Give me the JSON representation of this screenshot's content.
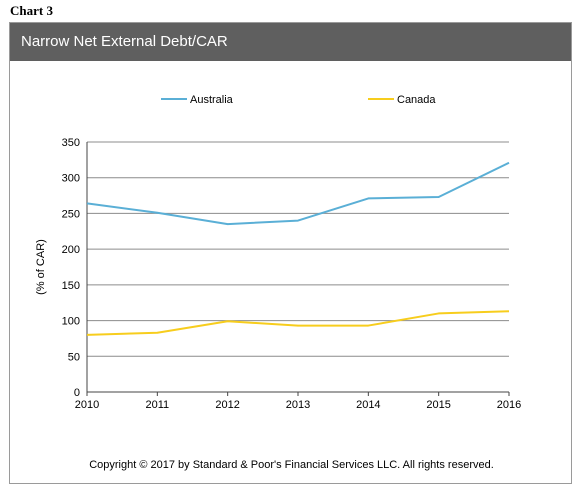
{
  "header": {
    "chart_label": "Chart 3"
  },
  "panel": {
    "title": "Narrow Net External Debt/CAR"
  },
  "footer": {
    "copyright": "Copyright © 2017 by Standard & Poor's Financial Services LLC. All rights reserved."
  },
  "colors": {
    "Australia": "#5aafd6",
    "Canada": "#f7cd1d",
    "grid": "#8c8c8c",
    "title_bar": "#5f5f5f"
  },
  "chart_data": {
    "type": "line",
    "title": "Narrow Net External Debt/CAR",
    "xlabel": "",
    "ylabel": "(% of CAR)",
    "x": [
      "2010",
      "2011",
      "2012",
      "2013",
      "2014",
      "2015",
      "2016"
    ],
    "ylim": [
      0,
      350
    ],
    "yticks": [
      0,
      50,
      100,
      150,
      200,
      250,
      300,
      350
    ],
    "grid": true,
    "legend_position": "top",
    "series": [
      {
        "name": "Australia",
        "values": [
          264,
          251,
          235,
          240,
          271,
          273,
          321
        ]
      },
      {
        "name": "Canada",
        "values": [
          80,
          83,
          99,
          93,
          93,
          110,
          113
        ]
      }
    ]
  }
}
